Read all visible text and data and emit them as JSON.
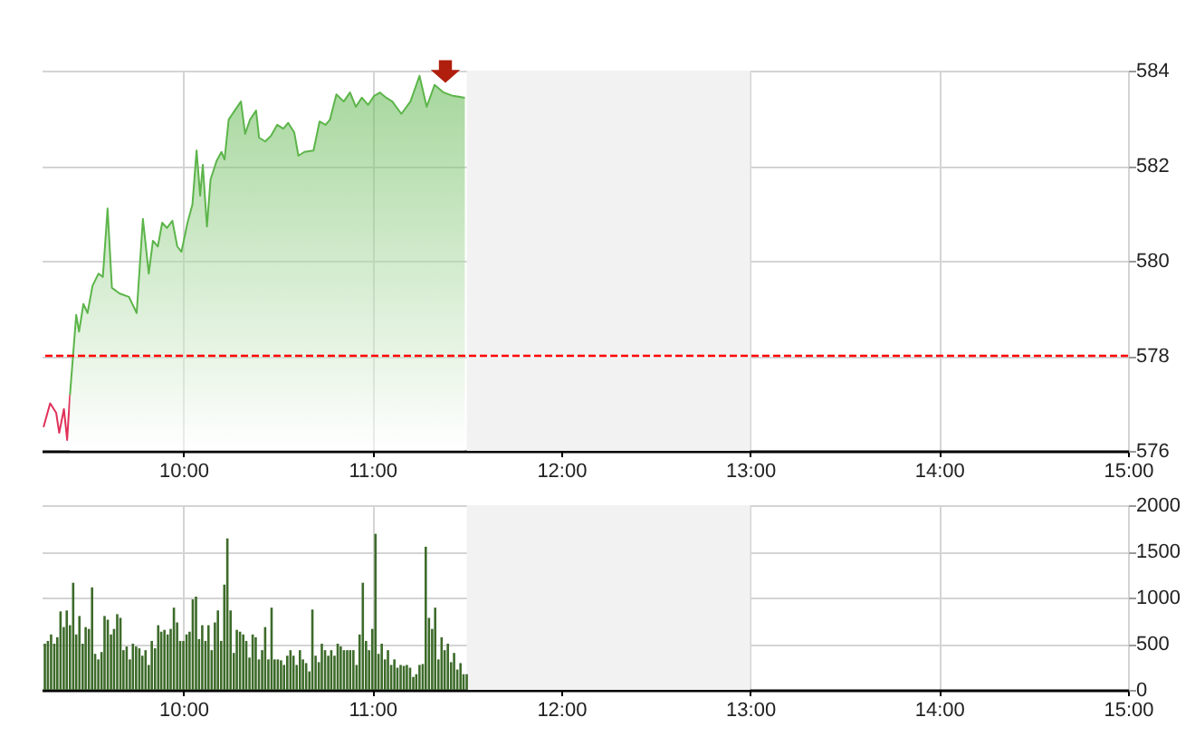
{
  "chart_data": [
    {
      "type": "area",
      "xlim": [
        9.25,
        15
      ],
      "xticks": [
        {
          "value": 10,
          "label": "10:00"
        },
        {
          "value": 11,
          "label": "11:00"
        },
        {
          "value": 12,
          "label": "12:00"
        },
        {
          "value": 13,
          "label": "13:00"
        },
        {
          "value": 14,
          "label": "14:00"
        },
        {
          "value": 15,
          "label": "15:00"
        }
      ],
      "ylim": [
        576,
        584
      ],
      "yticks": [
        576,
        578,
        580,
        582,
        584
      ],
      "grid": true,
      "bands": [
        {
          "axis": "x",
          "from": 11.5,
          "to": 13,
          "color": "#f2f2f2"
        }
      ],
      "ref_lines": [
        {
          "axis": "y",
          "value": 578,
          "color": "#ff0000",
          "line_style": "dashed"
        }
      ],
      "series": [
        {
          "type": "line",
          "color": "#e0305a",
          "x": [
            9.26,
            9.295,
            9.327,
            9.343,
            9.368,
            9.385,
            9.4
          ],
          "values": [
            576.5,
            577.0,
            576.8,
            576.38,
            576.88,
            576.23,
            577.18
          ]
        },
        {
          "color": "#5cb54a",
          "x": [
            9.4,
            9.433,
            9.448,
            9.471,
            9.493,
            9.519,
            9.551,
            9.574,
            9.599,
            9.622,
            9.663,
            9.712,
            9.753,
            9.786,
            9.817,
            9.839,
            9.865,
            9.888,
            9.913,
            9.942,
            9.968,
            9.99,
            10.022,
            10.048,
            10.07,
            10.089,
            10.103,
            10.125,
            10.144,
            10.176,
            10.202,
            10.218,
            10.24,
            10.272,
            10.305,
            10.327,
            10.353,
            10.385,
            10.401,
            10.433,
            10.464,
            10.497,
            10.529,
            10.555,
            10.587,
            10.609,
            10.641,
            10.689,
            10.721,
            10.753,
            10.776,
            10.81,
            10.849,
            10.882,
            10.913,
            10.945,
            10.978,
            11.01,
            11.041,
            11.074,
            11.106,
            11.154,
            11.202,
            11.25,
            11.288,
            11.33,
            11.378,
            11.426,
            11.49
          ],
          "values": [
            577.18,
            578.86,
            578.51,
            579.09,
            578.9,
            579.47,
            579.73,
            579.66,
            581.1,
            579.43,
            579.31,
            579.24,
            578.9,
            580.88,
            579.73,
            580.42,
            580.3,
            580.8,
            580.69,
            580.84,
            580.3,
            580.19,
            580.8,
            581.18,
            582.32,
            581.37,
            582.02,
            580.72,
            581.71,
            582.1,
            582.29,
            582.13,
            582.97,
            583.16,
            583.35,
            582.67,
            582.97,
            583.16,
            582.59,
            582.51,
            582.63,
            582.86,
            582.78,
            582.9,
            582.7,
            582.21,
            582.29,
            582.32,
            582.93,
            582.86,
            582.97,
            583.5,
            583.35,
            583.54,
            583.24,
            583.43,
            583.28,
            583.47,
            583.54,
            583.43,
            583.35,
            583.09,
            583.35,
            583.89,
            583.24,
            583.7,
            583.54,
            583.47,
            583.43
          ]
        }
      ]
    },
    {
      "type": "bar",
      "xlim": [
        9.25,
        15
      ],
      "xticks": [
        {
          "value": 10,
          "label": "10:00"
        },
        {
          "value": 11,
          "label": "11:00"
        },
        {
          "value": 12,
          "label": "12:00"
        },
        {
          "value": 13,
          "label": "13:00"
        },
        {
          "value": 14,
          "label": "14:00"
        },
        {
          "value": 15,
          "label": "15:00"
        }
      ],
      "ylim": [
        0,
        2000
      ],
      "yticks": [
        0,
        500,
        1000,
        1500,
        2000
      ],
      "grid": true,
      "bands": [
        {
          "axis": "x",
          "from": 11.5,
          "to": 13,
          "color": "#f2f2f2"
        }
      ],
      "series": [
        {
          "color": "#3d6b2a",
          "x": [
            9.267,
            9.283,
            9.3,
            9.317,
            9.333,
            9.35,
            9.367,
            9.383,
            9.4,
            9.417,
            9.433,
            9.45,
            9.467,
            9.483,
            9.5,
            9.517,
            9.533,
            9.55,
            9.567,
            9.583,
            9.6,
            9.617,
            9.633,
            9.65,
            9.667,
            9.683,
            9.7,
            9.717,
            9.733,
            9.75,
            9.767,
            9.783,
            9.8,
            9.817,
            9.833,
            9.85,
            9.867,
            9.883,
            9.9,
            9.917,
            9.933,
            9.95,
            9.967,
            9.983,
            10.0,
            10.017,
            10.033,
            10.05,
            10.067,
            10.083,
            10.1,
            10.117,
            10.133,
            10.15,
            10.167,
            10.183,
            10.2,
            10.217,
            10.233,
            10.25,
            10.267,
            10.283,
            10.3,
            10.317,
            10.333,
            10.35,
            10.367,
            10.383,
            10.4,
            10.417,
            10.433,
            10.45,
            10.467,
            10.483,
            10.5,
            10.517,
            10.533,
            10.55,
            10.567,
            10.583,
            10.6,
            10.617,
            10.633,
            10.65,
            10.667,
            10.683,
            10.7,
            10.717,
            10.733,
            10.75,
            10.767,
            10.783,
            10.8,
            10.817,
            10.833,
            10.85,
            10.867,
            10.883,
            10.9,
            10.917,
            10.933,
            10.95,
            10.967,
            10.983,
            11.0,
            11.017,
            11.033,
            11.05,
            11.067,
            11.083,
            11.1,
            11.117,
            11.133,
            11.15,
            11.167,
            11.183,
            11.2,
            11.217,
            11.233,
            11.25,
            11.267,
            11.283,
            11.3,
            11.317,
            11.333,
            11.35,
            11.367,
            11.383,
            11.4,
            11.417,
            11.433,
            11.45,
            11.467,
            11.483,
            11.5
          ],
          "values": [
            500,
            530,
            600,
            500,
            570,
            850,
            680,
            860,
            700,
            1160,
            600,
            800,
            500,
            680,
            660,
            1110,
            390,
            330,
            410,
            800,
            760,
            600,
            660,
            820,
            780,
            430,
            470,
            330,
            500,
            470,
            450,
            370,
            430,
            270,
            530,
            450,
            700,
            630,
            650,
            600,
            660,
            890,
            730,
            530,
            530,
            600,
            630,
            980,
            1010,
            550,
            700,
            530,
            700,
            430,
            730,
            860,
            530,
            1140,
            1640,
            860,
            400,
            650,
            630,
            600,
            530,
            350,
            600,
            570,
            330,
            430,
            680,
            330,
            890,
            330,
            330,
            320,
            270,
            370,
            430,
            370,
            270,
            430,
            330,
            290,
            200,
            870,
            370,
            300,
            500,
            430,
            370,
            430,
            370,
            500,
            470,
            430,
            430,
            430,
            430,
            270,
            600,
            1160,
            530,
            430,
            660,
            1690,
            390,
            500,
            330,
            430,
            270,
            330,
            240,
            270,
            260,
            270,
            240,
            140,
            170,
            270,
            280,
            1550,
            780,
            660,
            890,
            330,
            570,
            430,
            500,
            300,
            400,
            220,
            290,
            170,
            170
          ]
        }
      ]
    }
  ]
}
